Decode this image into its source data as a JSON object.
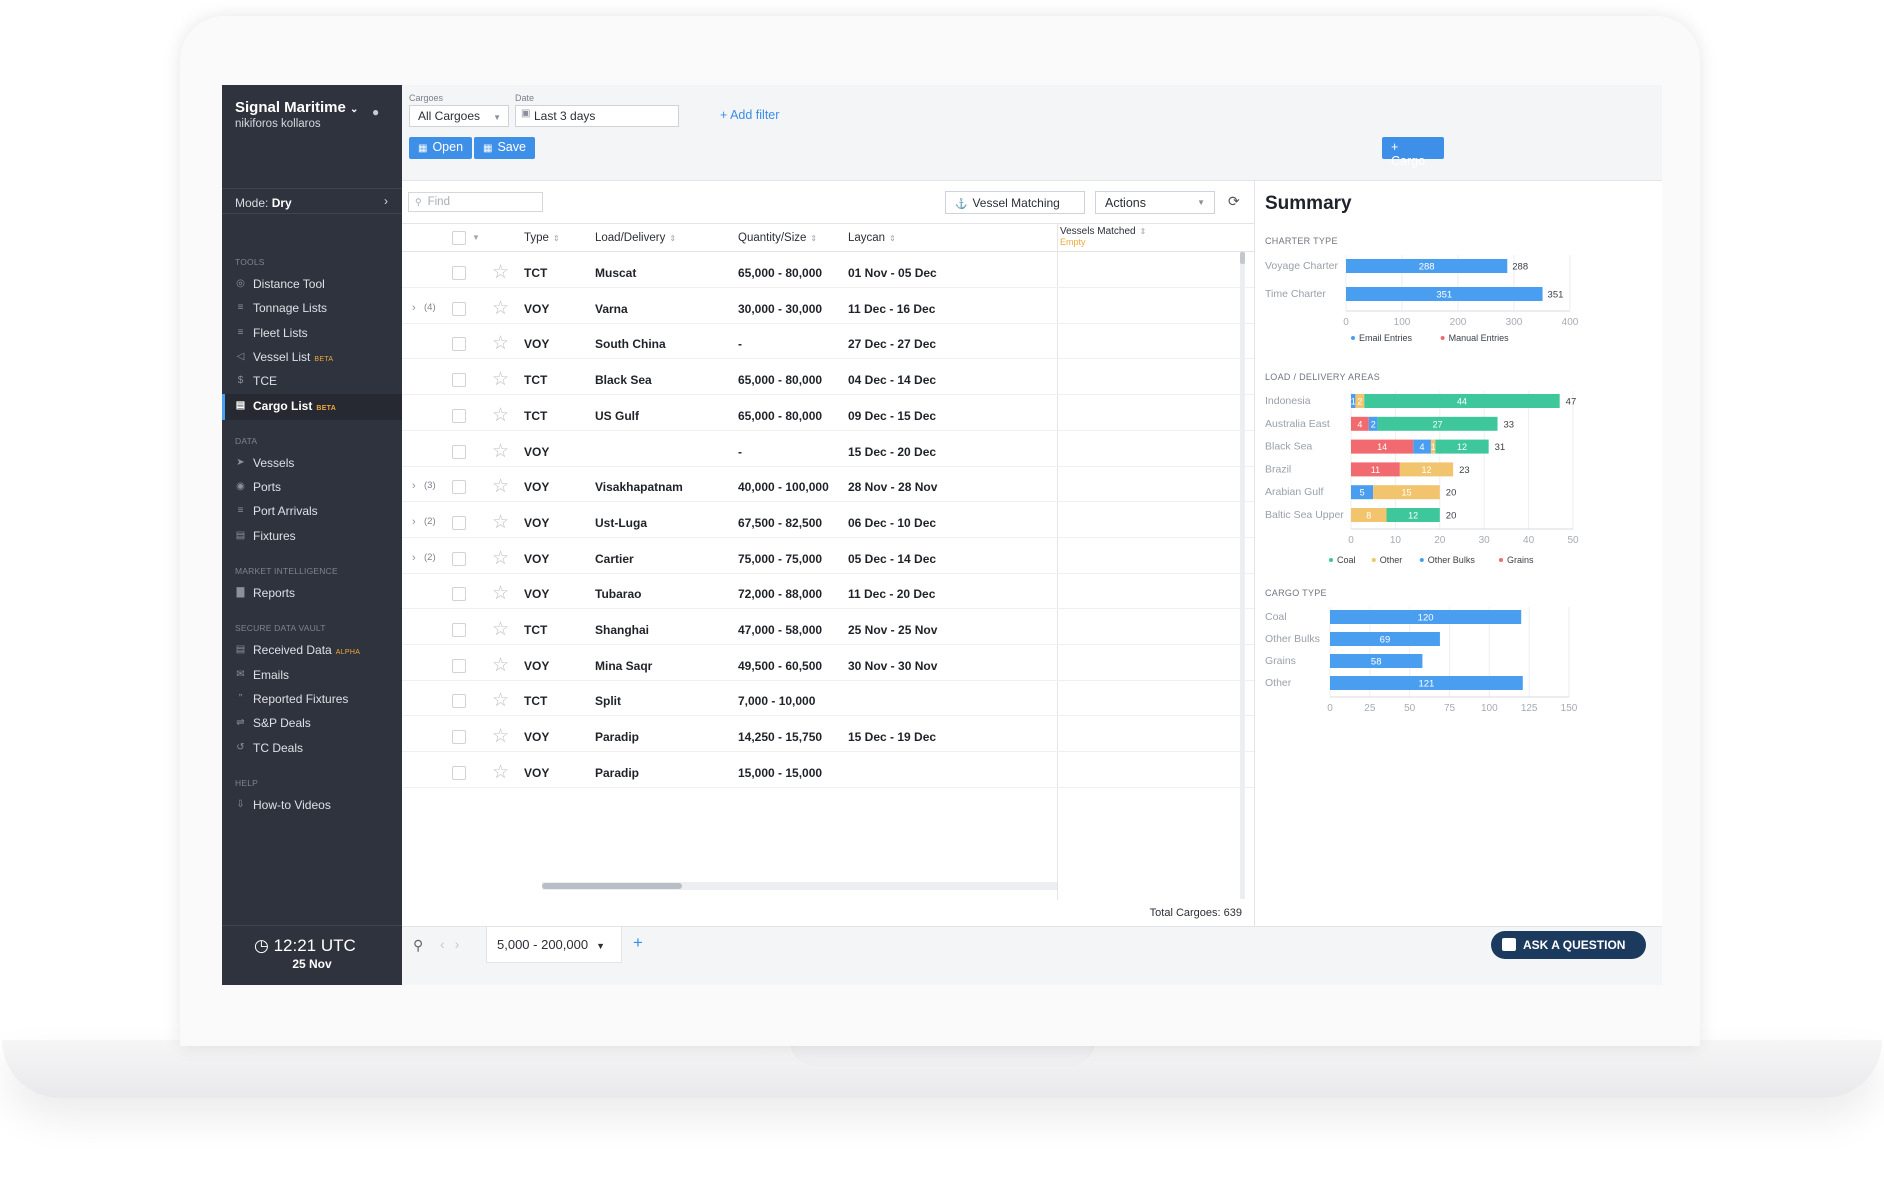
{
  "app": {
    "org": "Signal Maritime",
    "user": "nikiforos kollaros",
    "mode_label": "Mode:",
    "mode_value": "Dry"
  },
  "sidebar": {
    "sections": [
      {
        "title": "TOOLS",
        "items": [
          {
            "label": "Distance Tool",
            "icon": "globe-icon"
          },
          {
            "label": "Tonnage Lists",
            "icon": "list-icon"
          },
          {
            "label": "Fleet Lists",
            "icon": "list-icon"
          },
          {
            "label": "Vessel List",
            "badge": "BETA",
            "icon": "vessel-icon"
          },
          {
            "label": "TCE",
            "icon": "dollar-icon"
          },
          {
            "label": "Cargo List",
            "badge": "BETA",
            "icon": "clipboard-icon",
            "active": true
          }
        ]
      },
      {
        "title": "DATA",
        "items": [
          {
            "label": "Vessels",
            "icon": "navigation-icon"
          },
          {
            "label": "Ports",
            "icon": "target-icon"
          },
          {
            "label": "Port Arrivals",
            "icon": "list-icon"
          },
          {
            "label": "Fixtures",
            "icon": "document-icon"
          }
        ]
      },
      {
        "title": "MARKET INTELLIGENCE",
        "items": [
          {
            "label": "Reports",
            "icon": "bar-chart-icon"
          }
        ]
      },
      {
        "title": "SECURE DATA VAULT",
        "items": [
          {
            "label": "Received Data",
            "badge": "ALPHA",
            "icon": "document-icon"
          },
          {
            "label": "Emails",
            "icon": "mail-icon"
          },
          {
            "label": "Reported Fixtures",
            "icon": "quote-icon"
          },
          {
            "label": "S&P Deals",
            "icon": "handshake-icon"
          },
          {
            "label": "TC Deals",
            "icon": "history-icon"
          }
        ]
      },
      {
        "title": "HELP",
        "items": [
          {
            "label": "How-to Videos",
            "icon": "download-icon"
          }
        ]
      }
    ],
    "time": "12:21 UTC",
    "date": "25 Nov"
  },
  "filters": {
    "cargoes_label": "Cargoes",
    "cargoes_value": "All Cargoes",
    "date_label": "Date",
    "date_value": "Last 3 days",
    "add_filter": "+ Add filter"
  },
  "toolbar": {
    "open": "Open",
    "save": "Save",
    "add_cargo": "+ Cargo",
    "find_placeholder": "Find",
    "vessel_matching": "Vessel Matching",
    "actions": "Actions"
  },
  "table": {
    "columns": [
      "Type",
      "Load/Delivery",
      "Quantity/Size",
      "Laycan"
    ],
    "vm_header": "Vessels Matched",
    "vm_sub": "Empty",
    "rows": [
      {
        "group": "",
        "type": "TCT",
        "load": "Muscat",
        "qty": "65,000 - 80,000",
        "laycan": "01 Nov - 05 Dec"
      },
      {
        "group": "(4)",
        "type": "VOY",
        "load": "Varna",
        "qty": "30,000 - 30,000",
        "laycan": "11 Dec - 16 Dec"
      },
      {
        "group": "",
        "type": "VOY",
        "load": "South China",
        "qty": "-",
        "laycan": "27 Dec - 27 Dec"
      },
      {
        "group": "",
        "type": "TCT",
        "load": "Black Sea",
        "qty": "65,000 - 80,000",
        "laycan": "04 Dec - 14 Dec"
      },
      {
        "group": "",
        "type": "TCT",
        "load": "US Gulf",
        "qty": "65,000 - 80,000",
        "laycan": "09 Dec - 15 Dec"
      },
      {
        "group": "",
        "type": "VOY",
        "load": "",
        "qty": "-",
        "laycan": "15 Dec - 20 Dec"
      },
      {
        "group": "(3)",
        "type": "VOY",
        "load": "Visakhapatnam",
        "qty": "40,000 - 100,000",
        "laycan": "28 Nov - 28 Nov"
      },
      {
        "group": "(2)",
        "type": "VOY",
        "load": "Ust-Luga",
        "qty": "67,500 - 82,500",
        "laycan": "06 Dec - 10 Dec"
      },
      {
        "group": "(2)",
        "type": "VOY",
        "load": "Cartier",
        "qty": "75,000 - 75,000",
        "laycan": "05 Dec - 14 Dec"
      },
      {
        "group": "",
        "type": "VOY",
        "load": "Tubarao",
        "qty": "72,000 - 88,000",
        "laycan": "11 Dec - 20 Dec"
      },
      {
        "group": "",
        "type": "TCT",
        "load": "Shanghai",
        "qty": "47,000 - 58,000",
        "laycan": "25 Nov - 25 Nov"
      },
      {
        "group": "",
        "type": "VOY",
        "load": "Mina Saqr",
        "qty": "49,500 - 60,500",
        "laycan": "30 Nov - 30 Nov"
      },
      {
        "group": "",
        "type": "TCT",
        "load": "Split",
        "qty": "7,000 - 10,000",
        "laycan": ""
      },
      {
        "group": "",
        "type": "VOY",
        "load": "Paradip",
        "qty": "14,250 - 15,750",
        "laycan": "15 Dec - 19 Dec"
      },
      {
        "group": "",
        "type": "VOY",
        "load": "Paradip",
        "qty": "15,000 - 15,000",
        "laycan": ""
      }
    ],
    "total": "Total Cargoes: 639"
  },
  "bottom": {
    "range": "5,000 - 200,000",
    "ask": "ASK A QUESTION"
  },
  "summary": {
    "title": "Summary"
  },
  "colors": {
    "blue": "#4a9ef0",
    "red": "#f06a6f",
    "green": "#3ec79b",
    "yellow": "#f2c46d",
    "sidebar": "#2f333d"
  },
  "chart_data": [
    {
      "type": "bar",
      "orientation": "horizontal",
      "title": "CHARTER TYPE",
      "categories": [
        "Voyage Charter",
        "Time Charter"
      ],
      "series": [
        {
          "name": "Email Entries",
          "values": [
            288,
            351
          ]
        },
        {
          "name": "Manual Entries",
          "values": [
            0,
            0
          ]
        }
      ],
      "totals": [
        288,
        351
      ],
      "xticks": [
        0,
        100,
        200,
        300,
        400
      ],
      "xlim": [
        0,
        400
      ],
      "legend": "bottom"
    },
    {
      "type": "bar",
      "orientation": "horizontal",
      "stacked": true,
      "title": "LOAD / DELIVERY AREAS",
      "categories": [
        "Indonesia",
        "Australia East",
        "Black Sea",
        "Brazil",
        "Arabian Gulf",
        "Baltic Sea Upper"
      ],
      "series": [
        {
          "name": "Grains",
          "values": [
            0,
            4,
            14,
            11,
            0,
            0
          ]
        },
        {
          "name": "Other Bulks",
          "values": [
            1,
            2,
            4,
            0,
            5,
            0
          ]
        },
        {
          "name": "Other",
          "values": [
            2,
            0,
            1,
            12,
            15,
            8
          ]
        },
        {
          "name": "Coal",
          "values": [
            44,
            27,
            12,
            0,
            0,
            12
          ]
        }
      ],
      "totals": [
        47,
        33,
        31,
        23,
        20,
        20
      ],
      "legend_order": [
        "Coal",
        "Other",
        "Other Bulks",
        "Grains"
      ],
      "xticks": [
        0,
        10,
        20,
        30,
        40,
        50
      ],
      "xlim": [
        0,
        50
      ],
      "legend": "bottom"
    },
    {
      "type": "bar",
      "orientation": "horizontal",
      "title": "CARGO TYPE",
      "categories": [
        "Coal",
        "Other Bulks",
        "Grains",
        "Other"
      ],
      "values": [
        120,
        69,
        58,
        121
      ],
      "xticks": [
        0,
        25,
        50,
        75,
        100,
        125,
        150
      ],
      "xlim": [
        0,
        150
      ]
    }
  ]
}
